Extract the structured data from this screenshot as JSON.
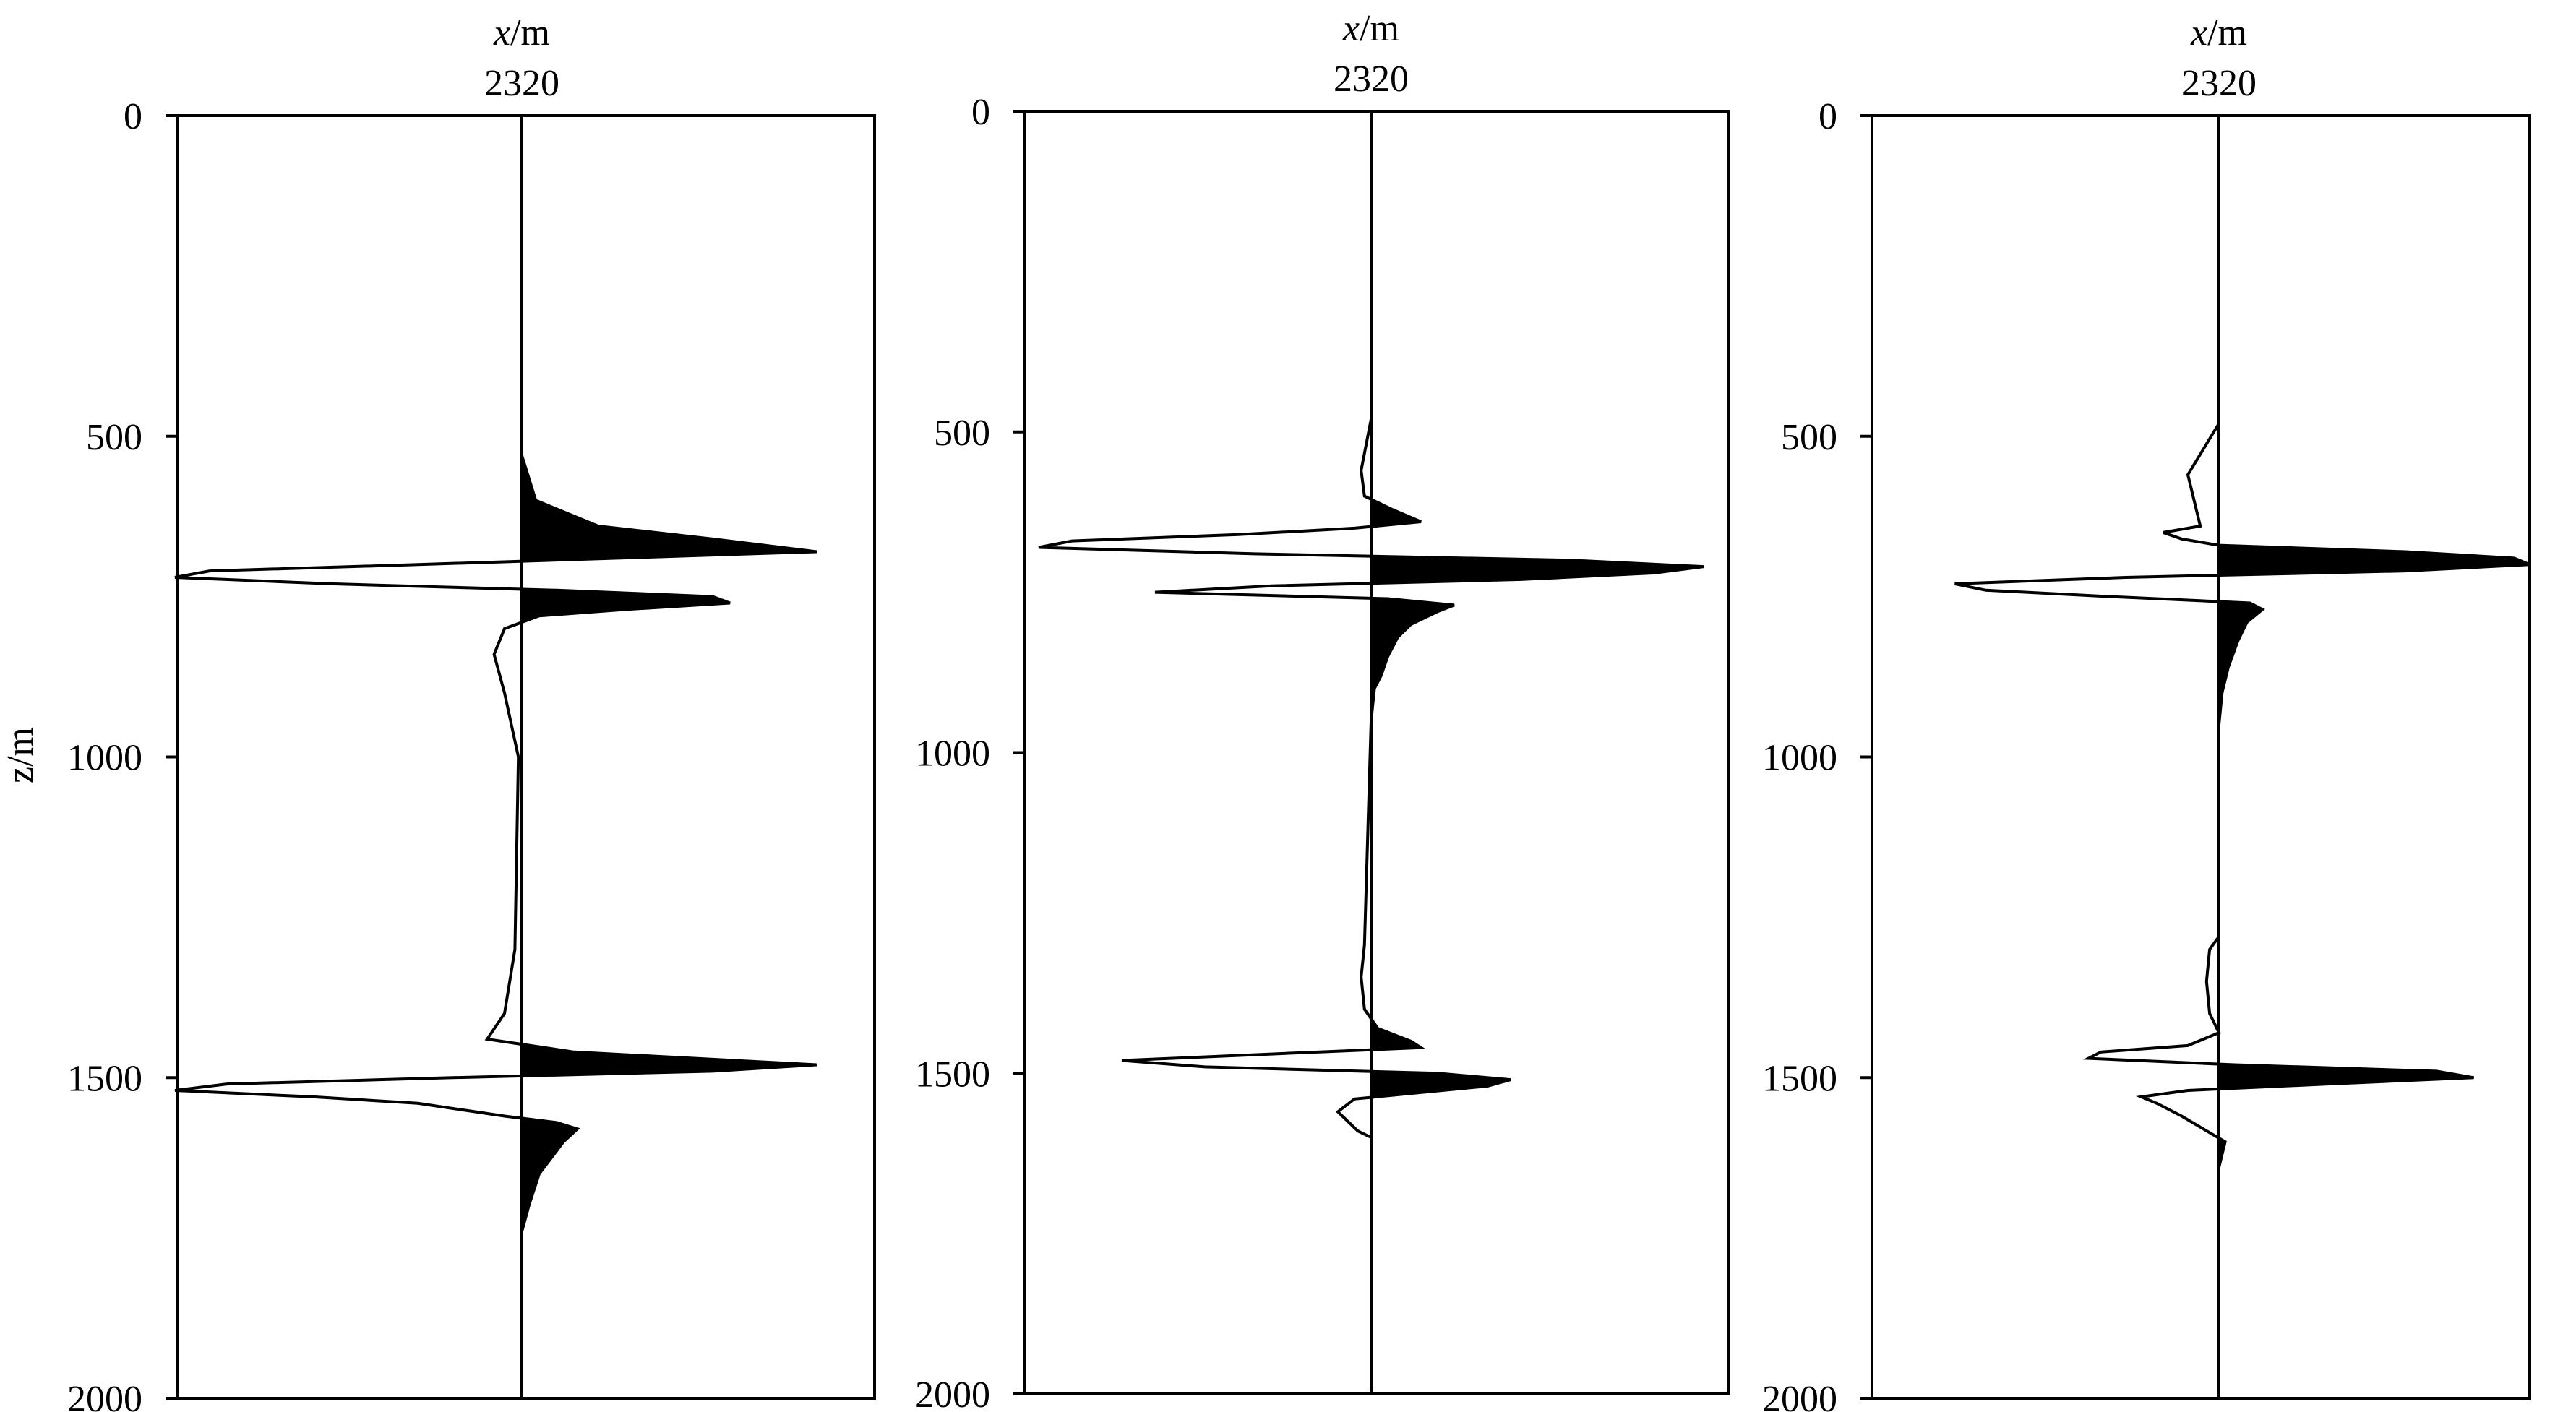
{
  "chart_data": [
    {
      "type": "line",
      "xlabel": "x/m",
      "ylabel": "z/m",
      "trace_label": "2320",
      "ylim": [
        0,
        2000
      ],
      "yticks": [
        "0",
        "500",
        "1000",
        "1500",
        "2000"
      ],
      "y_inverted": true,
      "series": [
        {
          "depth": [
            530,
            600,
            640,
            660,
            680,
            700,
            710,
            720,
            730,
            740,
            750,
            760,
            770,
            780,
            800,
            840,
            900,
            1000,
            1300,
            1400,
            1440,
            1460,
            1480,
            1490,
            1500,
            1510,
            1520,
            1530,
            1540,
            1560,
            1570,
            1580,
            1600,
            1650,
            1700,
            1740
          ],
          "amplitude": [
            0.0,
            0.04,
            0.22,
            0.55,
            0.85,
            -0.3,
            -0.9,
            -1.0,
            -0.55,
            0.1,
            0.55,
            0.6,
            0.3,
            0.05,
            -0.05,
            -0.08,
            -0.05,
            -0.01,
            -0.02,
            -0.05,
            -0.1,
            0.15,
            0.85,
            0.55,
            -0.2,
            -0.85,
            -1.0,
            -0.6,
            -0.3,
            -0.05,
            0.1,
            0.16,
            0.12,
            0.05,
            0.02,
            0.0
          ]
        }
      ]
    },
    {
      "type": "line",
      "xlabel": "x/m",
      "ylabel": "",
      "trace_label": "2320",
      "ylim": [
        0,
        2000
      ],
      "yticks": [
        "0",
        "500",
        "1000",
        "1500",
        "2000"
      ],
      "y_inverted": true,
      "series": [
        {
          "depth": [
            480,
            560,
            600,
            620,
            640,
            650,
            660,
            670,
            680,
            690,
            700,
            710,
            720,
            730,
            740,
            750,
            760,
            770,
            780,
            800,
            820,
            850,
            880,
            900,
            950,
            1300,
            1350,
            1400,
            1430,
            1450,
            1460,
            1470,
            1480,
            1490,
            1500,
            1510,
            1520,
            1540,
            1560,
            1590,
            1600
          ],
          "amplitude": [
            0.0,
            -0.03,
            -0.02,
            0.06,
            0.15,
            -0.05,
            -0.4,
            -0.9,
            -1.0,
            -0.35,
            0.6,
            1.0,
            0.85,
            0.45,
            -0.3,
            -0.65,
            0.05,
            0.25,
            0.2,
            0.12,
            0.08,
            0.05,
            0.03,
            0.01,
            0.0,
            -0.02,
            -0.03,
            -0.02,
            0.02,
            0.12,
            0.15,
            -0.3,
            -0.75,
            -0.5,
            0.2,
            0.42,
            0.35,
            -0.05,
            -0.1,
            -0.04,
            0.0
          ]
        }
      ]
    },
    {
      "type": "line",
      "xlabel": "x/m",
      "ylabel": "",
      "trace_label": "2320",
      "ylim": [
        0,
        2000
      ],
      "yticks": [
        "0",
        "500",
        "1000",
        "1500",
        "2000"
      ],
      "y_inverted": true,
      "series": [
        {
          "depth": [
            370,
            480,
            520,
            560,
            600,
            640,
            650,
            660,
            670,
            680,
            690,
            700,
            710,
            720,
            730,
            740,
            750,
            760,
            770,
            790,
            820,
            860,
            900,
            950,
            1280,
            1300,
            1350,
            1400,
            1430,
            1450,
            1460,
            1470,
            1480,
            1490,
            1500,
            1510,
            1520,
            1530,
            1540,
            1560,
            1580,
            1600,
            1640
          ],
          "amplitude": [
            0.0,
            0.0,
            -0.05,
            -0.1,
            -0.08,
            -0.06,
            -0.18,
            -0.12,
            0.0,
            0.6,
            0.95,
            1.0,
            0.6,
            -0.3,
            -0.85,
            -0.75,
            -0.35,
            0.1,
            0.14,
            0.09,
            0.06,
            0.03,
            0.01,
            0.0,
            0.0,
            -0.03,
            -0.04,
            -0.03,
            0.0,
            -0.1,
            -0.38,
            -0.42,
            0.05,
            0.7,
            0.82,
            0.35,
            -0.1,
            -0.25,
            -0.2,
            -0.12,
            -0.05,
            0.02,
            0.0
          ]
        }
      ]
    }
  ]
}
